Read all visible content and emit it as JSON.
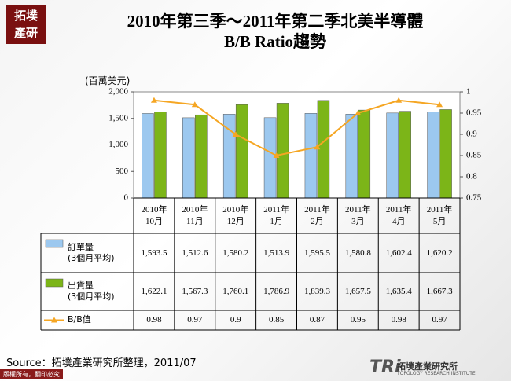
{
  "logo": "拓墣\n產研",
  "footer": {
    "mark": "TRi",
    "institute": "拓墣產業研究所",
    "institute_en": "TOPOLOGY RESEARCH INSTITUTE",
    "copyright": "版權所有，翻印必究"
  },
  "chart_data": {
    "type": "bar-line-table",
    "title": "2010年第三季～2011年第二季北美半導體\nB/B Ratio趨勢",
    "y_label": "(百萬美元)",
    "source": "Source：拓墣產業研究所整理，2011/07",
    "categories": [
      "2010年\n10月",
      "2010年\n11月",
      "2010年\n12月",
      "2011年\n1月",
      "2011年\n2月",
      "2011年\n3月",
      "2011年\n4月",
      "2011年\n5月"
    ],
    "ylim": [
      0,
      2000
    ],
    "yticks": [
      0,
      500,
      {
        "value": 1000,
        "label": "1,000"
      },
      {
        "value": 1500,
        "label": "1,500"
      },
      {
        "value": 2000,
        "label": "2,000"
      }
    ],
    "y2lim": [
      0.75,
      1
    ],
    "y2ticks": [
      0.75,
      0.8,
      0.85,
      0.9,
      0.95,
      1
    ],
    "series": [
      {
        "name": "訂單量\n(3個月平均)",
        "type": "bar",
        "color": "#9cc8ef",
        "values": [
          1593.5,
          1512.6,
          1580.2,
          1513.9,
          1595.5,
          1580.8,
          1602.4,
          1620.2
        ],
        "value_labels": [
          "1,593.5",
          "1,512.6",
          "1,580.2",
          "1,513.9",
          "1,595.5",
          "1,580.8",
          "1,602.4",
          "1,620.2"
        ]
      },
      {
        "name": "出貨量\n(3個月平均)",
        "type": "bar",
        "color": "#7cb518",
        "values": [
          1622.1,
          1567.3,
          1760.1,
          1786.9,
          1839.3,
          1657.5,
          1635.4,
          1667.3
        ],
        "value_labels": [
          "1,622.1",
          "1,567.3",
          "1,760.1",
          "1,786.9",
          "1,839.3",
          "1,657.5",
          "1,635.4",
          "1,667.3"
        ]
      },
      {
        "name": "B/B值",
        "type": "line",
        "axis": "y2",
        "color": "#f5a623",
        "values": [
          0.98,
          0.97,
          0.9,
          0.85,
          0.87,
          0.95,
          0.98,
          0.97
        ]
      }
    ]
  }
}
